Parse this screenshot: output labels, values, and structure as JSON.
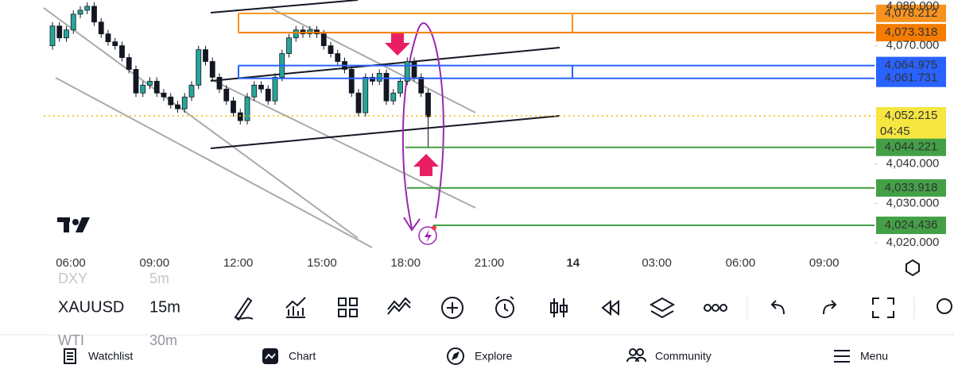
{
  "chart_data": {
    "type": "candlestick",
    "open": [
      4070,
      4075,
      4072,
      4074,
      4078,
      4079,
      4080,
      4076,
      4073,
      4071,
      4070,
      4067,
      4064,
      4058,
      4060,
      4061,
      4058,
      4057,
      4055,
      4054,
      4057,
      4060,
      4069,
      4066,
      4062,
      4059,
      4056,
      4053,
      4051,
      4057,
      4060,
      4059,
      4056,
      4062,
      4068,
      4072,
      4074,
      4073,
      4074,
      4073,
      4070,
      4068,
      4066,
      4064,
      4058,
      4053,
      4062,
      4061,
      4063,
      4056,
      4058,
      4061,
      4066,
      4062,
      4058
    ],
    "high": [
      4076,
      4076,
      4075,
      4079,
      4080,
      4081,
      4081,
      4077,
      4074,
      4072,
      4071,
      4068,
      4065,
      4061,
      4062,
      4062,
      4059,
      4058,
      4056,
      4058,
      4061,
      4070,
      4070,
      4067,
      4063,
      4060,
      4057,
      4054,
      4058,
      4061,
      4061,
      4060,
      4063,
      4069,
      4073,
      4075,
      4075,
      4075,
      4075,
      4074,
      4071,
      4069,
      4067,
      4065,
      4059,
      4063,
      4063,
      4064,
      4064,
      4059,
      4062,
      4067,
      4067,
      4063,
      4059
    ],
    "low": [
      4069,
      4071,
      4071,
      4073,
      4077,
      4078,
      4075,
      4072,
      4070,
      4069,
      4066,
      4063,
      4057,
      4057,
      4059,
      4057,
      4056,
      4054,
      4053,
      4053,
      4056,
      4059,
      4065,
      4061,
      4058,
      4055,
      4052,
      4050,
      4050,
      4056,
      4058,
      4055,
      4055,
      4061,
      4067,
      4071,
      4072,
      4072,
      4072,
      4069,
      4067,
      4065,
      4063,
      4057,
      4052,
      4052,
      4060,
      4060,
      4055,
      4055,
      4057,
      4060,
      4061,
      4057,
      4044
    ],
    "close": [
      4075,
      4072,
      4074,
      4078,
      4079,
      4080,
      4076,
      4073,
      4071,
      4070,
      4067,
      4064,
      4058,
      4060,
      4061,
      4058,
      4057,
      4055,
      4054,
      4057,
      4060,
      4069,
      4066,
      4062,
      4059,
      4056,
      4053,
      4051,
      4057,
      4060,
      4059,
      4056,
      4062,
      4068,
      4072,
      4074,
      4073,
      4074,
      4073,
      4070,
      4068,
      4066,
      4064,
      4058,
      4053,
      4062,
      4061,
      4063,
      4056,
      4058,
      4061,
      4066,
      4062,
      4058,
      4052
    ],
    "up_color": "#26a69a",
    "down_color": "#131722",
    "ylim": [
      4017.6,
      4081.6
    ],
    "yticks": [
      {
        "value": 4080,
        "label": "4,080.000"
      },
      {
        "value": 4070,
        "label": "4,070.000"
      },
      {
        "value": 4040,
        "label": "4,040.000"
      },
      {
        "value": 4030,
        "label": "4,030.000"
      },
      {
        "value": 4020,
        "label": "4,020.000"
      }
    ],
    "xtick_labels": [
      "06:00",
      "09:00",
      "12:00",
      "15:00",
      "18:00",
      "21:00",
      "14",
      "03:00",
      "06:00",
      "09:00"
    ],
    "levels": [
      {
        "value": 4078.212,
        "label": "4,078.212",
        "color": "#f7931e"
      },
      {
        "value": 4073.318,
        "label": "4,073.318",
        "color": "#f57c00"
      },
      {
        "value": 4064.975,
        "label": "4,064.975",
        "color": "#2962ff"
      },
      {
        "value": 4061.731,
        "label": "4,061.731",
        "color": "#2962ff"
      },
      {
        "value": 4052.215,
        "label": "4,052.215",
        "color": "#f5e642"
      },
      {
        "value": 4044.221,
        "label": "4,044.221",
        "color": "#43a047"
      },
      {
        "value": 4033.918,
        "label": "4,033.918",
        "color": "#43a047"
      },
      {
        "value": 4024.436,
        "label": "4,024.436",
        "color": "#43a047"
      }
    ],
    "countdown": "04:45"
  },
  "symbols": [
    {
      "symbol": "DXY",
      "interval": "5m"
    },
    {
      "symbol": "XAUUSD",
      "interval": "15m"
    },
    {
      "symbol": "WTI",
      "interval": "30m"
    }
  ],
  "nav": [
    "Watchlist",
    "Chart",
    "Explore",
    "Community",
    "Menu"
  ]
}
